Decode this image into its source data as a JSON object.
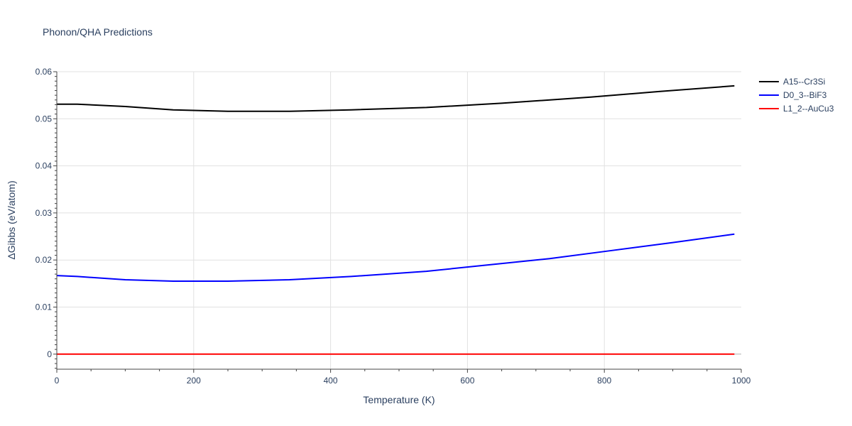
{
  "chart_data": {
    "type": "line",
    "title": "Phonon/QHA Predictions",
    "xlabel": "Temperature (K)",
    "ylabel": "ΔGibbs (eV/atom)",
    "xlim": [
      0,
      1000
    ],
    "ylim": [
      -0.0032,
      0.06
    ],
    "xticks": [
      0,
      200,
      400,
      600,
      800,
      1000
    ],
    "yticks": [
      0,
      0.01,
      0.02,
      0.03,
      0.04,
      0.05,
      0.06
    ],
    "xtick_labels": [
      "0",
      "200",
      "400",
      "600",
      "800",
      "1000"
    ],
    "ytick_labels": [
      "0",
      "0.01",
      "0.02",
      "0.03",
      "0.04",
      "0.05",
      "0.06"
    ],
    "grid": true,
    "legend_position": "top-right",
    "series": [
      {
        "name": "A15--Cr3Si",
        "color": "#000000",
        "x": [
          0,
          30,
          100,
          170,
          250,
          340,
          430,
          540,
          650,
          780,
          880,
          990
        ],
        "y": [
          0.0531,
          0.0531,
          0.0526,
          0.0519,
          0.0516,
          0.0516,
          0.0519,
          0.0524,
          0.0533,
          0.0546,
          0.0558,
          0.057
        ]
      },
      {
        "name": "D0_3--BiF3",
        "color": "#0000ff",
        "x": [
          0,
          30,
          100,
          170,
          250,
          340,
          430,
          540,
          620,
          720,
          810,
          900,
          990
        ],
        "y": [
          0.0167,
          0.0165,
          0.0158,
          0.0155,
          0.0155,
          0.0158,
          0.0165,
          0.0176,
          0.0188,
          0.0203,
          0.022,
          0.0237,
          0.0255
        ]
      },
      {
        "name": "L1_2--AuCu3",
        "color": "#ff0000",
        "x": [
          0,
          990
        ],
        "y": [
          0,
          0
        ]
      }
    ]
  }
}
